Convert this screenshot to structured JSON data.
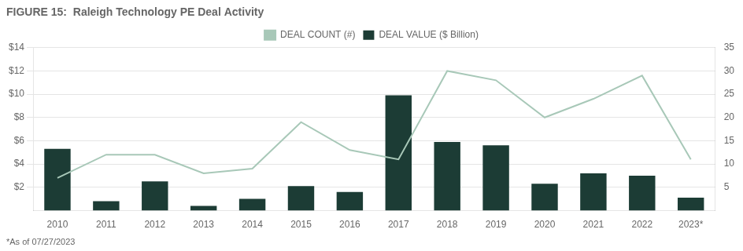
{
  "chart_data": {
    "type": "bar",
    "title": "FIGURE 15:  Raleigh Technology PE Deal Activity",
    "annotations": [
      "*As of 07/27/2023"
    ],
    "categories": [
      "2010",
      "2011",
      "2012",
      "2013",
      "2014",
      "2015",
      "2016",
      "2017",
      "2018",
      "2019",
      "2020",
      "2021",
      "2022",
      "2023*"
    ],
    "series": [
      {
        "name": "DEAL VALUE ($ Billion)",
        "type": "bar",
        "color": "#1C3C35",
        "values": [
          5.3,
          0.8,
          2.5,
          0.4,
          1.0,
          2.1,
          1.6,
          9.9,
          5.9,
          5.6,
          2.3,
          3.2,
          3.0,
          1.1
        ]
      },
      {
        "name": "DEAL COUNT (#)",
        "type": "line",
        "color": "#A8C8B8",
        "axis": "y2",
        "values": [
          7,
          12,
          12,
          8,
          9,
          19,
          13,
          11,
          30,
          28,
          20,
          24,
          29,
          11
        ]
      }
    ],
    "ylim": [
      0,
      14
    ],
    "yticks": [
      {
        "value": 2,
        "label": "$2"
      },
      {
        "value": 4,
        "label": "$4"
      },
      {
        "value": 6,
        "label": "$6"
      },
      {
        "value": 8,
        "label": "$8"
      },
      {
        "value": 10,
        "label": "$10"
      },
      {
        "value": 12,
        "label": "$12"
      },
      {
        "value": 14,
        "label": "$14"
      }
    ],
    "y2lim": [
      0,
      35
    ],
    "y2ticks": [
      5,
      10,
      15,
      20,
      25,
      30,
      35
    ],
    "grid": true,
    "legend": "top"
  }
}
